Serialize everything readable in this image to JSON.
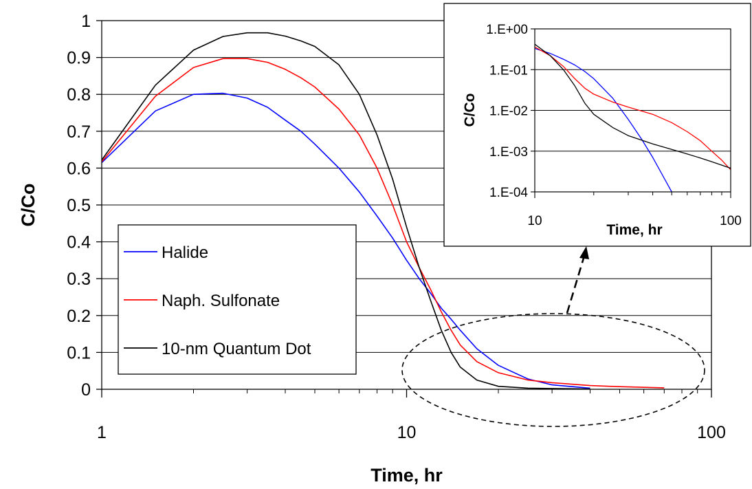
{
  "chart_data": [
    {
      "type": "line",
      "xlabel": "Time, hr",
      "ylabel": "C/Co",
      "xscale": "log",
      "xlim": [
        1,
        100
      ],
      "ylim": [
        0,
        1
      ],
      "x_ticks": [
        "1",
        "10",
        "100"
      ],
      "y_ticks": [
        "0",
        "0.1",
        "0.2",
        "0.3",
        "0.4",
        "0.5",
        "0.6",
        "0.7",
        "0.8",
        "0.9",
        "1"
      ],
      "grid": "horizontal",
      "legend": {
        "placement": "center-left",
        "entries": [
          "Halide",
          "Naph. Sulfonate",
          "10-nm Quantum Dot"
        ]
      },
      "series": [
        {
          "name": "Halide",
          "color": "#0000ff",
          "x": [
            1,
            1.5,
            2,
            2.5,
            3,
            3.5,
            4,
            4.5,
            5,
            6,
            7,
            8,
            9,
            10,
            11,
            12,
            13,
            14,
            15,
            17,
            20,
            25,
            30,
            40
          ],
          "y": [
            0.615,
            0.755,
            0.8,
            0.803,
            0.79,
            0.765,
            0.73,
            0.7,
            0.665,
            0.6,
            0.535,
            0.47,
            0.41,
            0.35,
            0.3,
            0.26,
            0.22,
            0.19,
            0.16,
            0.11,
            0.065,
            0.028,
            0.012,
            0.003
          ]
        },
        {
          "name": "Naph. Sulfonate",
          "color": "#ff0000",
          "x": [
            1,
            1.5,
            2,
            2.5,
            3,
            3.5,
            4,
            4.5,
            5,
            6,
            7,
            8,
            9,
            10,
            11,
            12,
            13,
            14,
            15,
            17,
            20,
            25,
            30,
            40,
            50,
            70
          ],
          "y": [
            0.617,
            0.795,
            0.873,
            0.897,
            0.897,
            0.887,
            0.868,
            0.845,
            0.82,
            0.76,
            0.69,
            0.6,
            0.5,
            0.4,
            0.33,
            0.27,
            0.21,
            0.16,
            0.12,
            0.075,
            0.045,
            0.025,
            0.018,
            0.01,
            0.007,
            0.004
          ]
        },
        {
          "name": "10-nm Quantum Dot",
          "color": "#000000",
          "x": [
            1,
            1.5,
            2,
            2.5,
            3,
            3.5,
            4,
            4.5,
            5,
            6,
            7,
            8,
            9,
            10,
            11,
            12,
            13,
            14,
            15,
            17,
            20,
            25,
            30,
            40
          ],
          "y": [
            0.622,
            0.825,
            0.92,
            0.957,
            0.967,
            0.967,
            0.958,
            0.945,
            0.93,
            0.88,
            0.8,
            0.69,
            0.57,
            0.44,
            0.33,
            0.24,
            0.16,
            0.1,
            0.06,
            0.025,
            0.008,
            0.003,
            0.002,
            0.001
          ]
        }
      ]
    },
    {
      "type": "line",
      "xlabel": "Time, hr",
      "ylabel": "C/Co",
      "xscale": "log",
      "yscale": "log",
      "xlim": [
        10,
        100
      ],
      "ylim": [
        0.0001,
        1
      ],
      "x_ticks": [
        "10",
        "100"
      ],
      "y_ticks": [
        "1.E-04",
        "1.E-03",
        "1.E-02",
        "1.E-01",
        "1.E+00"
      ],
      "grid": "horizontal",
      "series": [
        {
          "name": "Halide",
          "color": "#0000ff",
          "x": [
            10,
            12,
            14,
            16,
            18,
            20,
            25,
            30,
            35,
            40,
            45,
            50
          ],
          "y": [
            0.33,
            0.25,
            0.18,
            0.13,
            0.09,
            0.06,
            0.02,
            0.006,
            0.002,
            0.0007,
            0.00025,
            0.0001
          ]
        },
        {
          "name": "Naph. Sulfonate",
          "color": "#ff0000",
          "x": [
            10,
            12,
            14,
            16,
            18,
            20,
            25,
            30,
            40,
            50,
            60,
            70,
            80,
            90,
            100
          ],
          "y": [
            0.36,
            0.22,
            0.12,
            0.06,
            0.035,
            0.025,
            0.016,
            0.012,
            0.008,
            0.005,
            0.003,
            0.0018,
            0.001,
            0.0006,
            0.00035
          ]
        },
        {
          "name": "10-nm Quantum Dot",
          "color": "#000000",
          "x": [
            10,
            12,
            14,
            16,
            18,
            20,
            25,
            30,
            40,
            50,
            60,
            70,
            80,
            100
          ],
          "y": [
            0.42,
            0.22,
            0.1,
            0.04,
            0.015,
            0.008,
            0.0038,
            0.0024,
            0.0015,
            0.0011,
            0.00085,
            0.00068,
            0.00055,
            0.00038
          ]
        }
      ]
    }
  ]
}
